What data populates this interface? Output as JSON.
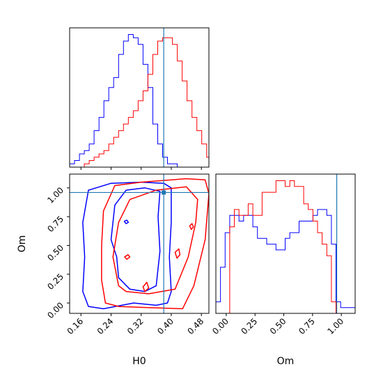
{
  "chart_data": {
    "type": "corner",
    "parameters": [
      "H0",
      "Om"
    ],
    "truths": {
      "H0": 0.38,
      "Om": 0.96
    },
    "colors": {
      "series_a": "#0000ff",
      "series_b": "#ff0000",
      "truth": "#1f77b4"
    },
    "axes": {
      "H0": {
        "range": [
          0.13,
          0.5
        ],
        "ticks": [
          0.16,
          0.24,
          0.32,
          0.4,
          0.48
        ],
        "tick_labels": [
          "0.16",
          "0.24",
          "0.32",
          "0.40",
          "0.48"
        ]
      },
      "Om": {
        "range": [
          -0.09,
          1.12
        ],
        "ticks": [
          0.0,
          0.25,
          0.5,
          0.75,
          1.0
        ],
        "tick_labels": [
          "0.00",
          "0.25",
          "0.50",
          "0.75",
          "1.00"
        ]
      }
    },
    "hist_H0": {
      "bin_edges": [
        0.13,
        0.143,
        0.156,
        0.169,
        0.182,
        0.195,
        0.208,
        0.221,
        0.234,
        0.247,
        0.26,
        0.273,
        0.286,
        0.299,
        0.312,
        0.325,
        0.338,
        0.351,
        0.364,
        0.377,
        0.39,
        0.403,
        0.416,
        0.429,
        0.442,
        0.455,
        0.468,
        0.481,
        0.494,
        0.5
      ],
      "series": [
        {
          "color": "blue",
          "counts": [
            1,
            2,
            4,
            5,
            7,
            11,
            15,
            20,
            24,
            27,
            34,
            38,
            40,
            39,
            37,
            31,
            24,
            13,
            7,
            3,
            1,
            1,
            0,
            0,
            0,
            0,
            0,
            0,
            0
          ]
        },
        {
          "color": "red",
          "counts": [
            0,
            0,
            0,
            1,
            2,
            3,
            4,
            5,
            7,
            9,
            11,
            13,
            15,
            17,
            20,
            23,
            28,
            34,
            38,
            39,
            39,
            37,
            32,
            26,
            20,
            15,
            11,
            7,
            3
          ]
        }
      ]
    },
    "hist_Om": {
      "bin_edges": [
        -0.09,
        -0.0499,
        -0.0097,
        0.0304,
        0.0706,
        0.1107,
        0.1509,
        0.191,
        0.2312,
        0.2713,
        0.3115,
        0.3516,
        0.3918,
        0.4319,
        0.4721,
        0.5122,
        0.5524,
        0.5925,
        0.6327,
        0.6728,
        0.713,
        0.7531,
        0.7933,
        0.8334,
        0.8736,
        0.9137,
        0.9539,
        0.994,
        1.0342,
        1.0743,
        1.12
      ],
      "series": [
        {
          "color": "blue",
          "counts": [
            2,
            8,
            14,
            17,
            17,
            16,
            17,
            17,
            15,
            13,
            13,
            12,
            12,
            11,
            11,
            13,
            14,
            14,
            16,
            16,
            16,
            17,
            18,
            18,
            17,
            12,
            2,
            1,
            1,
            1
          ]
        },
        {
          "color": "red",
          "counts": [
            0,
            0,
            0,
            15,
            18,
            17,
            17,
            19,
            17,
            17,
            21,
            21,
            21,
            23,
            23,
            22,
            23,
            22,
            22,
            19,
            18,
            16,
            14,
            12,
            10,
            2,
            0,
            0,
            0,
            0
          ]
        }
      ]
    },
    "contours": [
      {
        "color": "blue",
        "paths": [
          [
            [
              0.18,
              -0.03
            ],
            [
              0.165,
              0.1
            ],
            [
              0.17,
              0.4
            ],
            [
              0.165,
              0.7
            ],
            [
              0.18,
              0.98
            ],
            [
              0.24,
              1.04
            ],
            [
              0.32,
              1.05
            ],
            [
              0.38,
              1.04
            ],
            [
              0.4,
              1.0
            ],
            [
              0.4,
              0.7
            ],
            [
              0.395,
              0.4
            ],
            [
              0.4,
              0.1
            ],
            [
              0.39,
              0.0
            ],
            [
              0.36,
              -0.02
            ],
            [
              0.3,
              0.0
            ],
            [
              0.22,
              -0.05
            ],
            [
              0.18,
              -0.03
            ]
          ],
          [
            [
              0.255,
              0.4
            ],
            [
              0.24,
              0.55
            ],
            [
              0.25,
              0.85
            ],
            [
              0.28,
              0.98
            ],
            [
              0.33,
              1.0
            ],
            [
              0.37,
              0.97
            ],
            [
              0.365,
              0.75
            ],
            [
              0.37,
              0.45
            ],
            [
              0.36,
              0.15
            ],
            [
              0.33,
              0.1
            ],
            [
              0.29,
              0.12
            ],
            [
              0.26,
              0.22
            ],
            [
              0.255,
              0.4
            ]
          ],
          [
            [
              0.28,
              0.69
            ],
            [
              0.275,
              0.71
            ],
            [
              0.282,
              0.72
            ],
            [
              0.286,
              0.7
            ],
            [
              0.28,
              0.69
            ]
          ]
        ]
      },
      {
        "color": "red",
        "paths": [
          [
            [
              0.225,
              0.0
            ],
            [
              0.215,
              0.2
            ],
            [
              0.215,
              0.5
            ],
            [
              0.22,
              0.8
            ],
            [
              0.25,
              1.02
            ],
            [
              0.32,
              1.05
            ],
            [
              0.44,
              1.08
            ],
            [
              0.49,
              1.07
            ],
            [
              0.5,
              0.95
            ],
            [
              0.49,
              0.55
            ],
            [
              0.46,
              0.15
            ],
            [
              0.43,
              -0.05
            ],
            [
              0.34,
              -0.04
            ],
            [
              0.26,
              -0.03
            ],
            [
              0.225,
              0.0
            ]
          ],
          [
            [
              0.26,
              0.15
            ],
            [
              0.245,
              0.4
            ],
            [
              0.26,
              0.7
            ],
            [
              0.29,
              0.9
            ],
            [
              0.36,
              0.98
            ],
            [
              0.44,
              1.01
            ],
            [
              0.47,
              0.9
            ],
            [
              0.465,
              0.7
            ],
            [
              0.445,
              0.4
            ],
            [
              0.41,
              0.12
            ],
            [
              0.34,
              0.08
            ],
            [
              0.28,
              0.1
            ],
            [
              0.26,
              0.15
            ]
          ],
          [
            [
              0.33,
              0.1
            ],
            [
              0.325,
              0.14
            ],
            [
              0.335,
              0.18
            ],
            [
              0.34,
              0.13
            ],
            [
              0.33,
              0.1
            ]
          ],
          [
            [
              0.415,
              0.39
            ],
            [
              0.41,
              0.44
            ],
            [
              0.42,
              0.47
            ],
            [
              0.423,
              0.42
            ],
            [
              0.415,
              0.39
            ]
          ],
          [
            [
              0.453,
              0.64
            ],
            [
              0.449,
              0.67
            ],
            [
              0.455,
              0.69
            ],
            [
              0.459,
              0.66
            ],
            [
              0.453,
              0.64
            ]
          ],
          [
            [
              0.282,
              0.38
            ],
            [
              0.276,
              0.4
            ],
            [
              0.285,
              0.42
            ],
            [
              0.29,
              0.4
            ],
            [
              0.282,
              0.38
            ]
          ]
        ]
      }
    ],
    "xlabels": [
      "H0",
      "Om"
    ],
    "ylabels": [
      "Om"
    ]
  }
}
